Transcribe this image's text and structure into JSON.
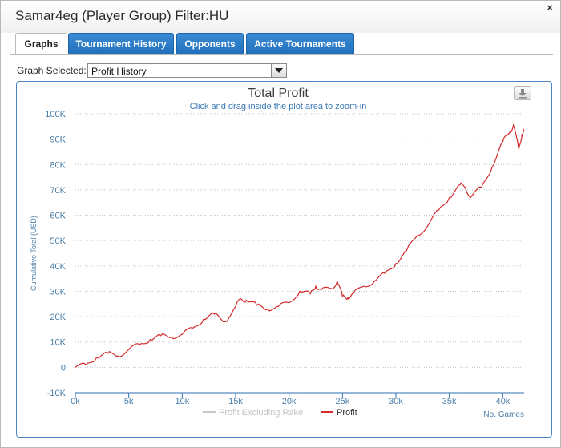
{
  "window": {
    "title": "Samar4eg (Player Group) Filter:HU",
    "close_label": "×"
  },
  "tabs": [
    {
      "label": "Graphs",
      "active": true
    },
    {
      "label": "Tournament History",
      "active": false
    },
    {
      "label": "Opponents",
      "active": false
    },
    {
      "label": "Active Tournaments",
      "active": false
    }
  ],
  "graph_selector": {
    "label": "Graph Selected:",
    "value": "Profit History"
  },
  "colors": {
    "profit": "#d42a2a",
    "excluding_rake": "#c8c8c8",
    "axis_text": "#4a7ea8",
    "tab_blue": "#2a7ac7"
  },
  "icons": {
    "export": "download-icon",
    "dropdown": "chevron-down-icon"
  },
  "chart_data": {
    "type": "line",
    "title": "Total Profit",
    "subtitle": "Click and drag inside the plot area to zoom-in",
    "xlabel": "No. Games",
    "ylabel": "Cumulative Total (USD)",
    "xlim": [
      0,
      42000
    ],
    "ylim": [
      -10000,
      100000
    ],
    "x_ticks": [
      "0k",
      "5k",
      "10k",
      "15k",
      "20k",
      "25k",
      "30k",
      "35k",
      "40k"
    ],
    "y_ticks": [
      "-10K",
      "0",
      "10K",
      "20K",
      "30K",
      "40K",
      "50K",
      "60K",
      "70K",
      "80K",
      "90K",
      "100K"
    ],
    "grid": true,
    "legend_position": "bottom-center",
    "series": [
      {
        "name": "Profit Excluding Rake",
        "visible": false,
        "x": [],
        "y": []
      },
      {
        "name": "Profit",
        "visible": true,
        "x": [
          0,
          1000,
          2000,
          3000,
          4000,
          5000,
          6000,
          7000,
          8000,
          9000,
          10000,
          11000,
          12000,
          13000,
          14000,
          15000,
          15500,
          16000,
          17000,
          18000,
          19000,
          20000,
          21000,
          22000,
          22500,
          23000,
          24000,
          24500,
          25000,
          25500,
          26000,
          27000,
          28000,
          29000,
          30000,
          31000,
          32000,
          33000,
          34000,
          35000,
          36000,
          36500,
          37000,
          38000,
          39000,
          40000,
          40700,
          41000,
          41500,
          41800,
          42000
        ],
        "y": [
          0,
          1000,
          4000,
          5500,
          4500,
          7000,
          9000,
          11000,
          12500,
          12000,
          13000,
          15500,
          19000,
          21000,
          18000,
          24000,
          27000,
          26500,
          24500,
          23000,
          24000,
          25500,
          30000,
          29000,
          32000,
          30500,
          31000,
          34000,
          28000,
          27500,
          29000,
          32000,
          34000,
          37000,
          41000,
          46000,
          52000,
          56000,
          62000,
          67000,
          72000,
          71000,
          67000,
          71000,
          79000,
          89000,
          93000,
          95500,
          86000,
          92000,
          93000
        ]
      }
    ]
  }
}
